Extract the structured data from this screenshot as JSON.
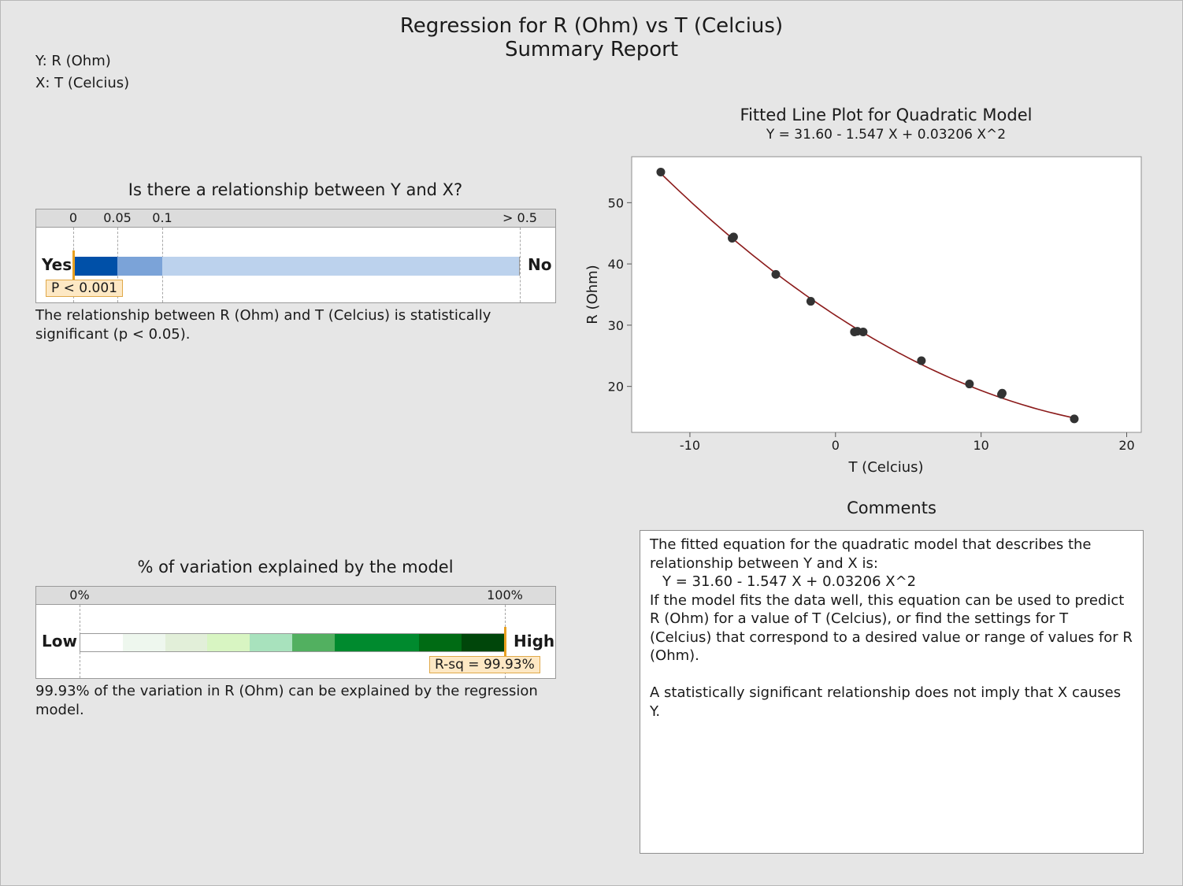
{
  "header": {
    "title": "Regression for R (Ohm) vs T (Celcius)",
    "subtitle": "Summary Report",
    "y_var": "Y: R (Ohm)",
    "x_var": "X: T (Celcius)"
  },
  "relationship": {
    "title": "Is there a relationship between Y and X?",
    "ticks": [
      "0",
      "0.05",
      "0.1",
      "> 0.5"
    ],
    "yes_label": "Yes",
    "no_label": "No",
    "p_label": "P < 0.001",
    "p_value_fraction_of_scale": 0.0,
    "colors": [
      "#0050a8",
      "#7ba3d8",
      "#bcd2ed"
    ],
    "conclusion": "The relationship between R (Ohm) and T (Celcius) is statistically significant (p < 0.05)."
  },
  "variation": {
    "title": "% of variation explained by the model",
    "tick_low": "0%",
    "tick_high": "100%",
    "low_label": "Low",
    "high_label": "High",
    "rsq_label": "R-sq = 99.93%",
    "rsq_percent": 99.93,
    "colors": [
      "#ffffff",
      "#eef7ee",
      "#e2efd9",
      "#d8f5c2",
      "#a8e2bd",
      "#52b060",
      "#008a2e",
      "#008a2e",
      "#006b14",
      "#00460a"
    ],
    "conclusion": "99.93% of the variation in R (Ohm) can be explained by the regression model."
  },
  "plot": {
    "title": "Fitted Line Plot for Quadratic Model",
    "equation": "Y = 31.60 - 1.547 X + 0.03206 X^2",
    "line_color": "#8b1a1a",
    "point_color": "#333333"
  },
  "comments": {
    "title": "Comments",
    "intro": "The fitted equation for the quadratic model that describes the relationship between Y and X is:",
    "equation": "Y = 31.60 - 1.547 X + 0.03206 X^2",
    "usage": "If the model fits the data well, this equation can be used to predict R (Ohm) for a value of T (Celcius), or find the settings for T (Celcius) that correspond to a desired value or range of values for R (Ohm).",
    "caution": "A statistically significant relationship does not imply that X causes Y."
  },
  "chart_data": {
    "type": "scatter",
    "title": "Fitted Line Plot for Quadratic Model",
    "subtitle": "Y = 31.60 - 1.547 X + 0.03206 X^2",
    "xlabel": "T (Celcius)",
    "ylabel": "R (Ohm)",
    "xlim": [
      -14,
      21
    ],
    "ylim": [
      12.5,
      57.5
    ],
    "xticks": [
      -10,
      0,
      10,
      20
    ],
    "yticks": [
      20,
      30,
      40,
      50
    ],
    "grid": false,
    "x": [
      -12,
      -7.1,
      -7,
      -4.1,
      -1.7,
      1.3,
      1.5,
      1.9,
      5.9,
      9.2,
      11.4,
      11.45,
      16.4
    ],
    "y": [
      55.0,
      44.2,
      44.4,
      38.3,
      33.9,
      28.9,
      29.0,
      28.9,
      24.2,
      20.4,
      18.7,
      18.9,
      14.7
    ],
    "fit": {
      "b0": 31.6,
      "b1": -1.547,
      "b2": 0.03206,
      "x_range": [
        -12,
        16.4
      ]
    }
  }
}
